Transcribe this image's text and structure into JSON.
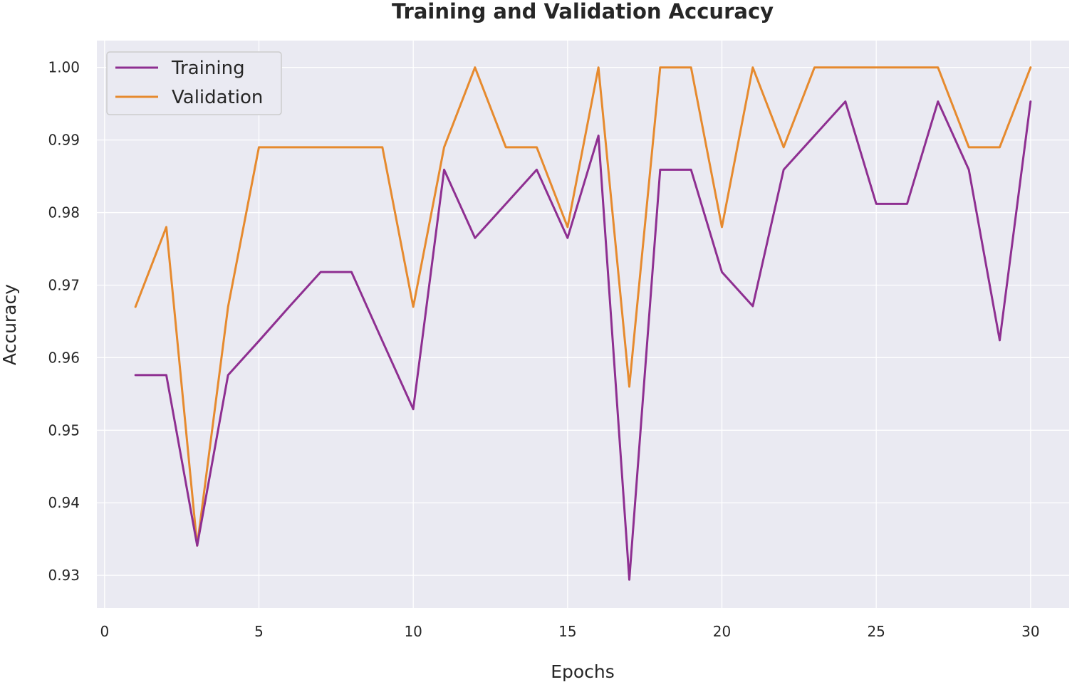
{
  "chart_data": {
    "type": "line",
    "title": "Training and Validation Accuracy",
    "xlabel": "Epochs",
    "ylabel": "Accuracy",
    "xlim": [
      -0.25,
      31.25
    ],
    "ylim": [
      0.9255,
      1.0037
    ],
    "xticks": [
      0,
      5,
      10,
      15,
      20,
      25,
      30
    ],
    "yticks": [
      0.93,
      0.94,
      0.95,
      0.96,
      0.97,
      0.98,
      0.99,
      1.0
    ],
    "xtick_labels": [
      "0",
      "5",
      "10",
      "15",
      "20",
      "25",
      "30"
    ],
    "ytick_labels": [
      "0.93",
      "0.94",
      "0.95",
      "0.96",
      "0.97",
      "0.98",
      "0.99",
      "1.00"
    ],
    "grid": true,
    "legend_position": "top-left",
    "x": [
      1,
      2,
      3,
      4,
      5,
      6,
      7,
      8,
      9,
      10,
      11,
      12,
      13,
      14,
      15,
      16,
      17,
      18,
      19,
      20,
      21,
      22,
      23,
      24,
      25,
      26,
      27,
      28,
      29,
      30
    ],
    "series": [
      {
        "name": "Training",
        "color": "#8e2f91",
        "values": [
          0.9576,
          0.9576,
          0.9341,
          0.9576,
          0.9623,
          0.9671,
          0.9718,
          0.9718,
          0.9623,
          0.9529,
          0.9859,
          0.9765,
          0.9812,
          0.9859,
          0.9765,
          0.9906,
          0.9294,
          0.9859,
          0.9859,
          0.9718,
          0.9671,
          0.9859,
          0.9906,
          0.9953,
          0.9812,
          0.9812,
          0.9953,
          0.9859,
          0.9624,
          0.9953
        ]
      },
      {
        "name": "Validation",
        "color": "#e68a2e",
        "values": [
          0.967,
          0.978,
          0.9341,
          0.967,
          0.989,
          0.989,
          0.989,
          0.989,
          0.989,
          0.967,
          0.989,
          1.0,
          0.989,
          0.989,
          0.978,
          1.0,
          0.956,
          1.0,
          1.0,
          0.978,
          1.0,
          0.989,
          1.0,
          1.0,
          1.0,
          1.0,
          1.0,
          0.989,
          0.989,
          1.0
        ]
      }
    ]
  },
  "colors": {
    "plot_background": "#eaeaf2",
    "grid": "#ffffff",
    "legend_border": "#cccccc"
  }
}
